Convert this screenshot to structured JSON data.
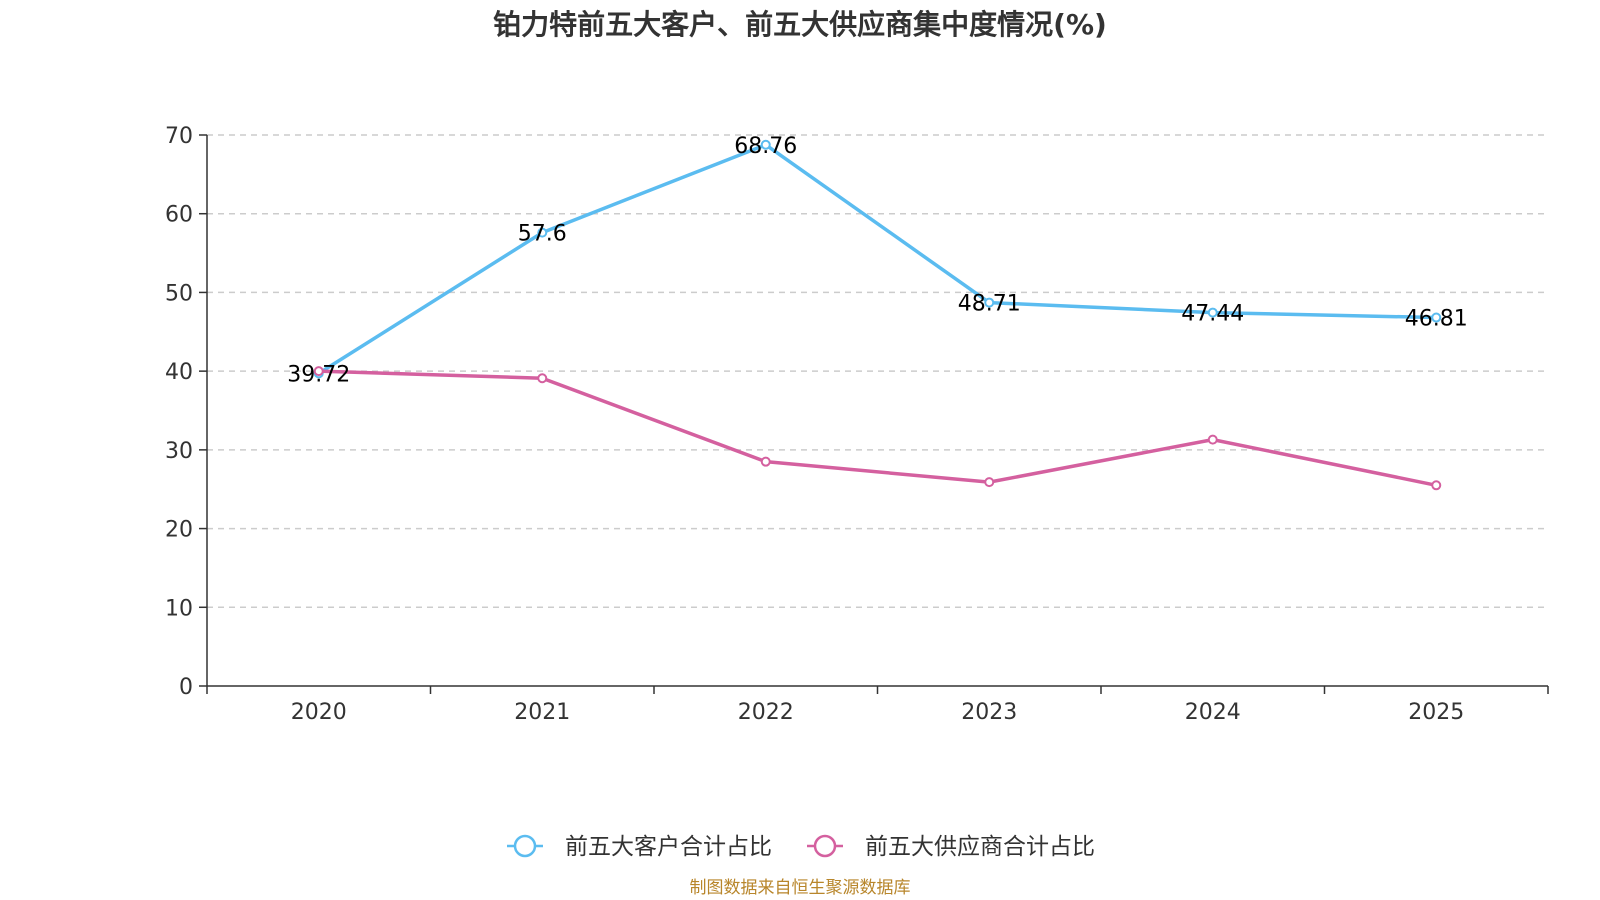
{
  "chart_data": {
    "type": "line",
    "title": "铂力特前五大客户、前五大供应商集中度情况(%)",
    "categories": [
      "2020",
      "2021",
      "2022",
      "2023",
      "2024",
      "2025"
    ],
    "ylim": [
      0,
      70
    ],
    "yticks": [
      "0",
      "10",
      "20",
      "30",
      "40",
      "50",
      "60",
      "70"
    ],
    "grid": true,
    "legend_position": "bottom-center",
    "series": [
      {
        "name": "前五大客户合计占比",
        "color": "#5bbcf0",
        "values": [
          39.72,
          57.6,
          68.76,
          48.71,
          47.44,
          46.81
        ],
        "labels": [
          "39.72",
          "57.6",
          "68.76",
          "48.71",
          "47.44",
          "46.81"
        ]
      },
      {
        "name": "前五大供应商合计占比",
        "color": "#d4609f",
        "values": [
          40.0,
          39.1,
          28.5,
          25.9,
          31.3,
          25.5
        ]
      }
    ]
  },
  "source": "制图数据来自恒生聚源数据库"
}
